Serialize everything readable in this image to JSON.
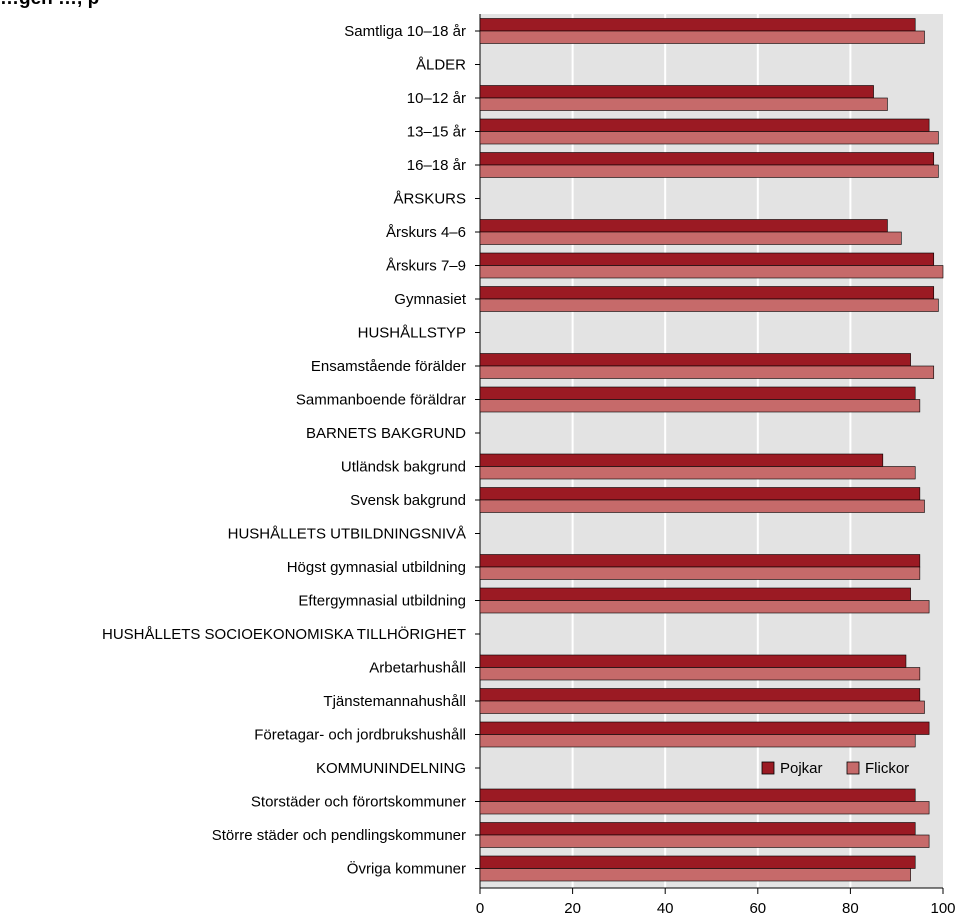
{
  "title": "…gen …, p",
  "colors": {
    "plot_background": "#e3e3e3",
    "gridline": "#ffffff",
    "pojkar": "#9b1a23",
    "flickor": "#c66a6a",
    "bar_stroke": "#000000"
  },
  "chart_data": {
    "type": "bar",
    "orientation": "horizontal",
    "title": "…gen …, p",
    "xlabel": "",
    "ylabel": "",
    "xlim": [
      0,
      100
    ],
    "xticks": [
      "0",
      "20",
      "40",
      "60",
      "80",
      "100"
    ],
    "grid": true,
    "legend_position": "bottom-right",
    "categories": [
      "Samtliga 10–18 år",
      "ÅLDER",
      "10–12 år",
      "13–15 år",
      "16–18 år",
      "ÅRSKURS",
      "Årskurs 4–6",
      "Årskurs 7–9",
      "Gymnasiet",
      "HUSHÅLLSTYP",
      "Ensamstående förälder",
      "Sammanboende föräldrar",
      "BARNETS BAKGRUND",
      "Utländsk bakgrund",
      "Svensk bakgrund",
      "HUSHÅLLETS UTBILDNINGSNIVÅ",
      "Högst gymnasial utbildning",
      "Eftergymnasial utbildning",
      "HUSHÅLLETS SOCIOEKONOMISKA TILLHÖRIGHET",
      "Arbetarhushåll",
      "Tjänstemannahushåll",
      "Företagar- och jordbrukshushåll",
      "KOMMUNINDELNING",
      "Storstäder och förortskommuner",
      "Större städer och pendlingskommuner",
      "Övriga kommuner"
    ],
    "series": [
      {
        "name": "Pojkar",
        "values": [
          94,
          null,
          85,
          97,
          98,
          null,
          88,
          98,
          98,
          null,
          93,
          94,
          null,
          87,
          95,
          null,
          95,
          93,
          null,
          92,
          95,
          97,
          null,
          94,
          94,
          94
        ]
      },
      {
        "name": "Flickor",
        "values": [
          96,
          null,
          88,
          99,
          99,
          null,
          91,
          100,
          99,
          null,
          98,
          95,
          null,
          94,
          96,
          null,
          95,
          97,
          null,
          95,
          96,
          94,
          null,
          97,
          97,
          93
        ]
      }
    ]
  }
}
